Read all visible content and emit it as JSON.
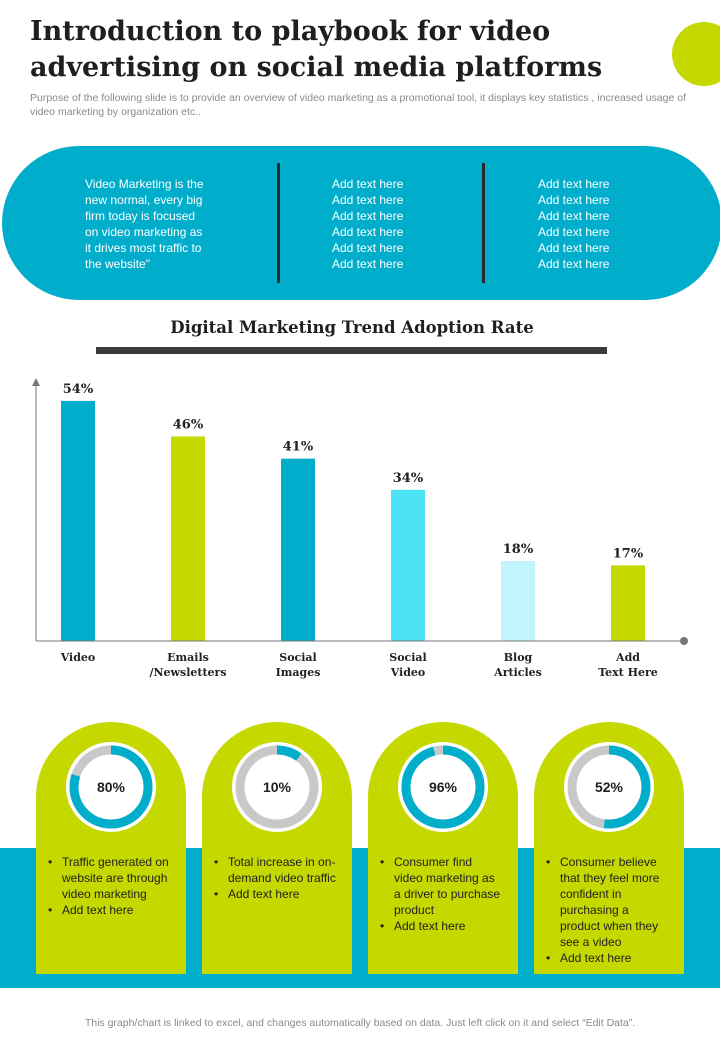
{
  "header": {
    "title": "Introduction to playbook for video advertising on social media platforms",
    "subtitle": "Purpose of the following slide is to provide an overview of  video marketing as a promotional tool, it displays key statistics , increased usage of video marketing by organization etc.."
  },
  "pill": {
    "col1": [
      "Video Marketing is the",
      "new normal, every big",
      "firm today is focused",
      "on video  marketing as",
      "it drives  most traffic to",
      "the website\""
    ],
    "col2": [
      "Add text here",
      "Add text here",
      "Add text here",
      "Add text here",
      "Add text here",
      "Add text here"
    ],
    "col3": [
      "Add text here",
      "Add text here",
      "Add text here",
      "Add text here",
      "Add text here",
      "Add text here"
    ]
  },
  "chart_data": {
    "type": "bar",
    "title": "Digital Marketing Trend Adoption Rate",
    "categories": [
      [
        "Video"
      ],
      [
        "Emails",
        "/Newsletters"
      ],
      [
        "Social",
        "Images"
      ],
      [
        "Social",
        "Video"
      ],
      [
        "Blog",
        "Articles"
      ],
      [
        "Add",
        "Text Here"
      ]
    ],
    "values": [
      54,
      46,
      41,
      34,
      18,
      17
    ],
    "data_labels": [
      "54%",
      "46%",
      "41%",
      "34%",
      "18%",
      "17%"
    ],
    "bar_colors": [
      "#00aecb",
      "#c5d800",
      "#00aecb",
      "#4de3f7",
      "#c2f4fb",
      "#c5d800"
    ],
    "ylim": [
      0,
      56
    ],
    "grid": false
  },
  "stats": [
    {
      "percent": "80%",
      "value": 80,
      "bullets": [
        "Traffic generated on website are through video marketing",
        "Add text here"
      ]
    },
    {
      "percent": "10%",
      "value": 10,
      "bullets": [
        "Total increase in on-demand video traffic",
        "Add text here"
      ]
    },
    {
      "percent": "96%",
      "value": 96,
      "bullets": [
        "Consumer find video marketing as a driver  to purchase product",
        "Add text here"
      ]
    },
    {
      "percent": "52%",
      "value": 52,
      "bullets": [
        "Consumer believe that they feel more confident in purchasing a product when they see a video",
        "Add text here"
      ]
    }
  ],
  "colors": {
    "accent": "#00aecb",
    "lime": "#c5d800",
    "ring_track": "#c8c8c8",
    "dark": "#2a2a2a"
  },
  "footer": {
    "note": "This graph/chart is linked to excel,  and changes automatically based on data. Just left click on it and select “Edit Data”."
  }
}
